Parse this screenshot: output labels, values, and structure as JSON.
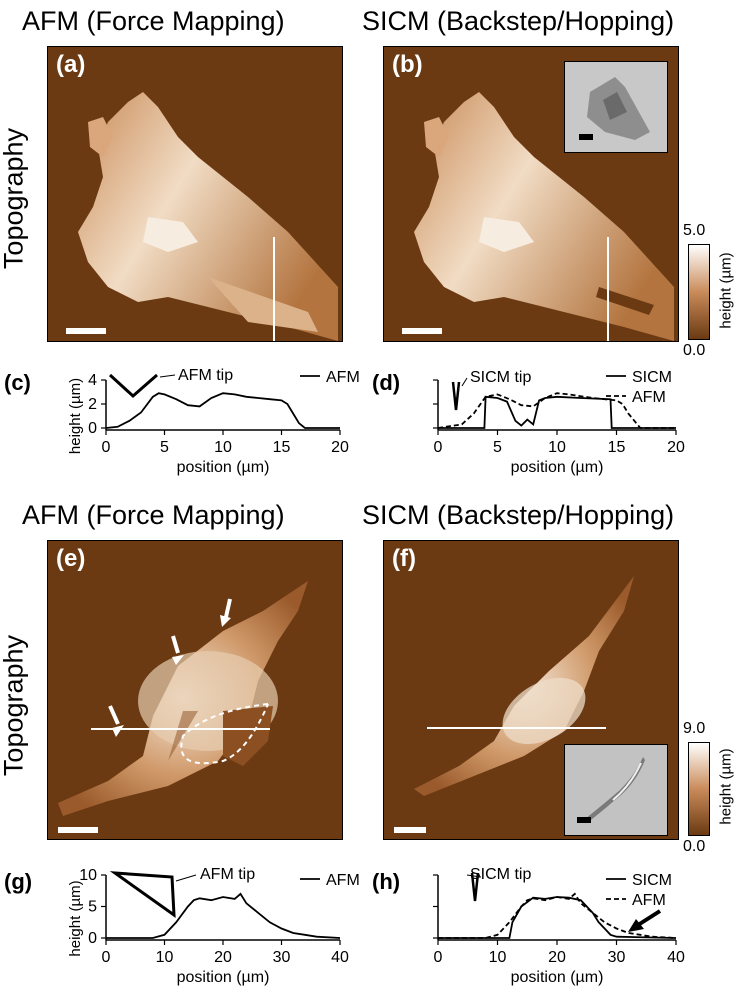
{
  "headers": {
    "afm_top": "AFM (Force Mapping)",
    "sicm_top": "SICM (Backstep/Hopping)",
    "afm_bottom": "AFM (Force Mapping)",
    "sicm_bottom": "SICM (Backstep/Hopping)"
  },
  "row_labels": {
    "top": "Topography",
    "bottom": "Topography"
  },
  "panels": {
    "a": "(a)",
    "b": "(b)",
    "c": "(c)",
    "d": "(d)",
    "e": "(e)",
    "f": "(f)",
    "g": "(g)",
    "h": "(h)"
  },
  "colorbars": {
    "top": {
      "max": "5.0",
      "min": "0.0",
      "unit": "height (µm)"
    },
    "bottom": {
      "max": "9.0",
      "min": "0.0",
      "unit": "height (µm)"
    }
  },
  "colors": {
    "background": "#6b3a12",
    "cell_low": "#a8693a",
    "cell_high": "#f3e4d2"
  },
  "chart_data": [
    {
      "panel": "c",
      "type": "line",
      "xlabel": "position (µm)",
      "ylabel": "height (µm)",
      "xlim": [
        0,
        20
      ],
      "ylim": [
        0,
        4
      ],
      "xticks": [
        "0",
        "5",
        "10",
        "15",
        "20"
      ],
      "yticks": [
        "0",
        "2",
        "4"
      ],
      "annotation": "AFM tip",
      "series": [
        {
          "name": "AFM",
          "style": "solid",
          "x": [
            0,
            1,
            2,
            3,
            4,
            4.5,
            5,
            6,
            7,
            8,
            9,
            10,
            11,
            12,
            13,
            14,
            15,
            15.5,
            16,
            16.5,
            17,
            20
          ],
          "y": [
            0,
            0.1,
            0.6,
            1.3,
            2.6,
            2.9,
            2.8,
            2.4,
            1.9,
            1.8,
            2.5,
            2.9,
            2.8,
            2.6,
            2.5,
            2.4,
            2.3,
            2.0,
            1.2,
            0.4,
            0,
            0
          ]
        }
      ]
    },
    {
      "panel": "d",
      "type": "line",
      "xlabel": "position (µm)",
      "xlim": [
        0,
        20
      ],
      "ylim": [
        0,
        4
      ],
      "xticks": [
        "0",
        "5",
        "10",
        "15",
        "20"
      ],
      "annotation": "SICM tip",
      "series": [
        {
          "name": "SICM",
          "style": "solid",
          "x": [
            0,
            3.9,
            4.0,
            5.0,
            5.8,
            6.5,
            7.0,
            7.5,
            8.0,
            8.5,
            9.0,
            10,
            12,
            14.5,
            14.6,
            20
          ],
          "y": [
            0,
            0,
            2.6,
            2.5,
            2.2,
            0.6,
            0.2,
            0.7,
            0.3,
            2.3,
            2.5,
            2.6,
            2.5,
            2.4,
            0,
            0
          ]
        },
        {
          "name": "AFM",
          "style": "dashed",
          "x": [
            0,
            2,
            3,
            4,
            5,
            6,
            7,
            8,
            9,
            10,
            11,
            13,
            15,
            15.5,
            16,
            17,
            20
          ],
          "y": [
            0,
            0.3,
            1.2,
            2.6,
            2.8,
            2.4,
            1.9,
            1.8,
            2.5,
            2.9,
            2.8,
            2.5,
            2.3,
            2.0,
            1.2,
            0,
            0
          ]
        }
      ]
    },
    {
      "panel": "g",
      "type": "line",
      "xlabel": "position (µm)",
      "ylabel": "height (µm)",
      "xlim": [
        0,
        40
      ],
      "ylim": [
        0,
        10
      ],
      "xticks": [
        "0",
        "10",
        "20",
        "30",
        "40"
      ],
      "yticks": [
        "0",
        "5",
        "10"
      ],
      "annotation": "AFM tip",
      "series": [
        {
          "name": "AFM",
          "style": "solid",
          "x": [
            0,
            8,
            10,
            12,
            14,
            15,
            16,
            18,
            20,
            22,
            23,
            24,
            26,
            28,
            30,
            32,
            34,
            36,
            40
          ],
          "y": [
            0,
            0,
            0.5,
            2.5,
            5.0,
            6.0,
            6.3,
            6.0,
            6.5,
            6.2,
            7.0,
            5.5,
            4.0,
            2.5,
            1.5,
            0.8,
            0.5,
            0.2,
            0
          ]
        }
      ]
    },
    {
      "panel": "h",
      "type": "line",
      "xlabel": "position (µm)",
      "xlim": [
        0,
        40
      ],
      "ylim": [
        0,
        10
      ],
      "xticks": [
        "0",
        "10",
        "20",
        "30",
        "40"
      ],
      "annotation": "SICM tip",
      "series": [
        {
          "name": "SICM",
          "style": "solid",
          "x": [
            0,
            12,
            12.5,
            14,
            16,
            18,
            20,
            22,
            24,
            26,
            27,
            28,
            29,
            30,
            40
          ],
          "y": [
            0,
            0,
            2.5,
            5.0,
            6.4,
            6.2,
            6.5,
            6.4,
            6.0,
            4.0,
            2.5,
            1.5,
            0.5,
            0.2,
            0
          ]
        },
        {
          "name": "AFM",
          "style": "dashed",
          "x": [
            0,
            8,
            10,
            12,
            14,
            15,
            16,
            18,
            20,
            22,
            23,
            24,
            26,
            28,
            30,
            32,
            34,
            36,
            40
          ],
          "y": [
            0,
            0,
            0.5,
            2.5,
            5.0,
            6.0,
            6.3,
            6.0,
            6.5,
            6.2,
            7.0,
            5.5,
            4.0,
            2.5,
            1.5,
            0.8,
            0.5,
            0.2,
            0
          ]
        }
      ]
    }
  ]
}
